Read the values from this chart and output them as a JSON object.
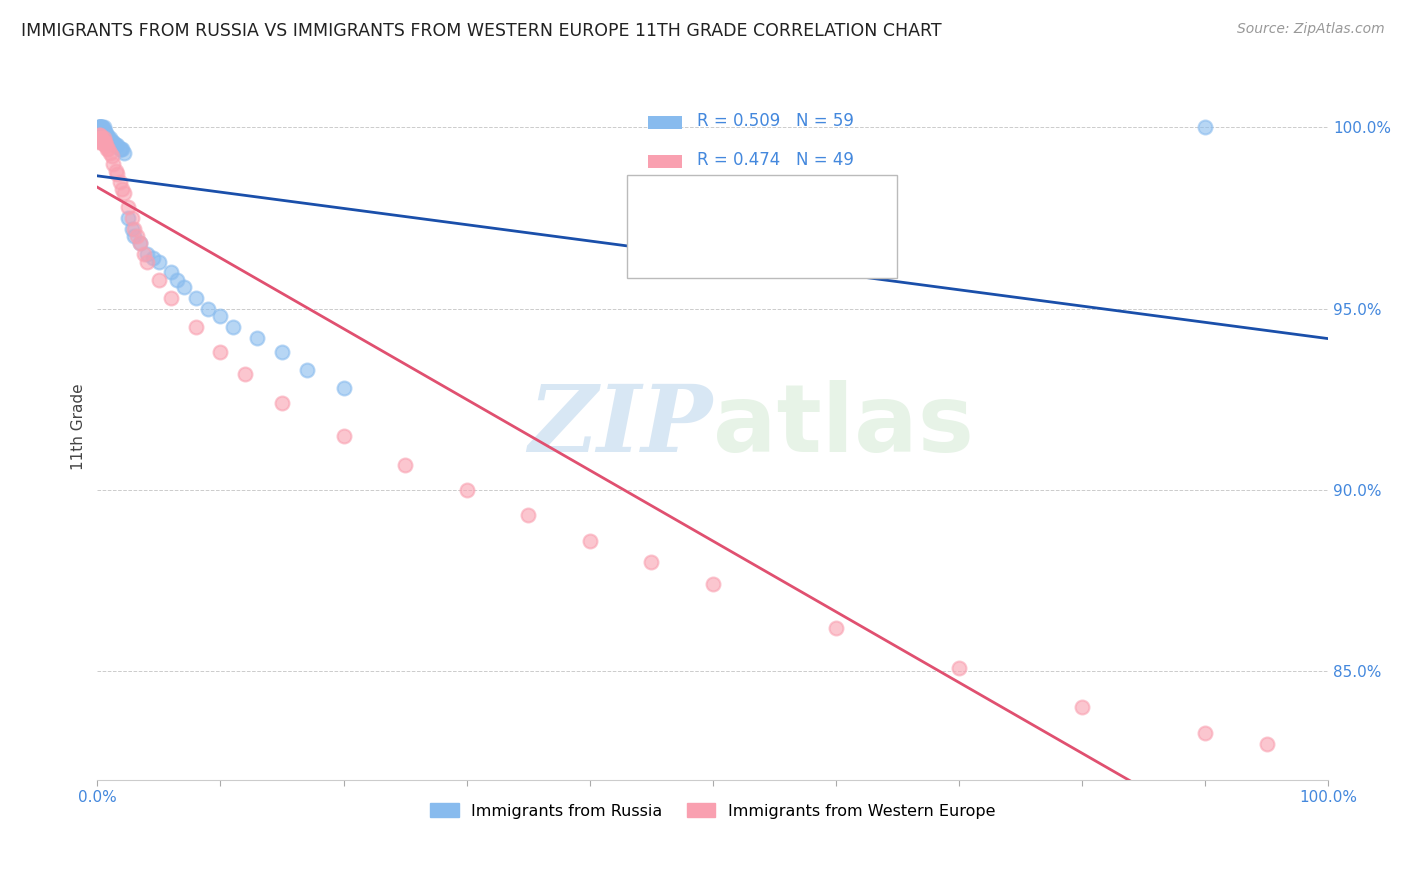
{
  "title": "IMMIGRANTS FROM RUSSIA VS IMMIGRANTS FROM WESTERN EUROPE 11TH GRADE CORRELATION CHART",
  "source": "Source: ZipAtlas.com",
  "ylabel": "11th Grade",
  "yaxis_labels": [
    "100.0%",
    "95.0%",
    "90.0%",
    "85.0%"
  ],
  "yaxis_values": [
    1.0,
    0.95,
    0.9,
    0.85
  ],
  "xaxis_range": [
    0.0,
    1.0
  ],
  "yaxis_range": [
    0.82,
    1.015
  ],
  "legend_russia": "Immigrants from Russia",
  "legend_western": "Immigrants from Western Europe",
  "R_russia": 0.509,
  "N_russia": 59,
  "R_western": 0.474,
  "N_western": 49,
  "color_russia": "#88bbee",
  "color_western": "#f9a0b0",
  "color_russia_line": "#1a4faa",
  "color_western_line": "#e05070",
  "russia_x": [
    0.001,
    0.001,
    0.001,
    0.001,
    0.002,
    0.002,
    0.002,
    0.003,
    0.003,
    0.003,
    0.003,
    0.003,
    0.004,
    0.004,
    0.004,
    0.004,
    0.004,
    0.005,
    0.005,
    0.005,
    0.005,
    0.006,
    0.006,
    0.007,
    0.007,
    0.008,
    0.008,
    0.009,
    0.01,
    0.01,
    0.011,
    0.012,
    0.013,
    0.014,
    0.015,
    0.016,
    0.018,
    0.019,
    0.02,
    0.022,
    0.025,
    0.028,
    0.03,
    0.035,
    0.04,
    0.045,
    0.05,
    0.06,
    0.065,
    0.07,
    0.08,
    0.09,
    0.1,
    0.11,
    0.13,
    0.15,
    0.17,
    0.2,
    0.9
  ],
  "russia_y": [
    1.0,
    1.0,
    1.0,
    0.998,
    1.0,
    1.0,
    1.0,
    1.0,
    1.0,
    0.998,
    0.998,
    0.997,
    1.0,
    1.0,
    0.999,
    0.998,
    0.997,
    1.0,
    0.999,
    0.998,
    0.997,
    0.999,
    0.998,
    0.998,
    0.997,
    0.998,
    0.996,
    0.997,
    0.997,
    0.996,
    0.996,
    0.996,
    0.996,
    0.995,
    0.995,
    0.995,
    0.994,
    0.994,
    0.994,
    0.993,
    0.975,
    0.972,
    0.97,
    0.968,
    0.965,
    0.964,
    0.963,
    0.96,
    0.958,
    0.956,
    0.953,
    0.95,
    0.948,
    0.945,
    0.942,
    0.938,
    0.933,
    0.928,
    1.0
  ],
  "western_x": [
    0.001,
    0.001,
    0.001,
    0.002,
    0.002,
    0.003,
    0.003,
    0.004,
    0.004,
    0.005,
    0.005,
    0.006,
    0.006,
    0.007,
    0.008,
    0.009,
    0.01,
    0.012,
    0.013,
    0.015,
    0.016,
    0.018,
    0.02,
    0.022,
    0.025,
    0.028,
    0.03,
    0.032,
    0.035,
    0.038,
    0.04,
    0.05,
    0.06,
    0.08,
    0.1,
    0.12,
    0.15,
    0.2,
    0.25,
    0.3,
    0.35,
    0.4,
    0.45,
    0.5,
    0.6,
    0.7,
    0.8,
    0.9,
    0.95
  ],
  "western_y": [
    0.998,
    0.997,
    0.996,
    0.998,
    0.997,
    0.997,
    0.996,
    0.997,
    0.996,
    0.997,
    0.996,
    0.996,
    0.995,
    0.995,
    0.994,
    0.994,
    0.993,
    0.992,
    0.99,
    0.988,
    0.987,
    0.985,
    0.983,
    0.982,
    0.978,
    0.975,
    0.972,
    0.97,
    0.968,
    0.965,
    0.963,
    0.958,
    0.953,
    0.945,
    0.938,
    0.932,
    0.924,
    0.915,
    0.907,
    0.9,
    0.893,
    0.886,
    0.88,
    0.874,
    0.862,
    0.851,
    0.84,
    0.833,
    0.83
  ],
  "watermark_zip": "ZIP",
  "watermark_atlas": "atlas",
  "background_color": "#ffffff",
  "grid_color": "#cccccc"
}
